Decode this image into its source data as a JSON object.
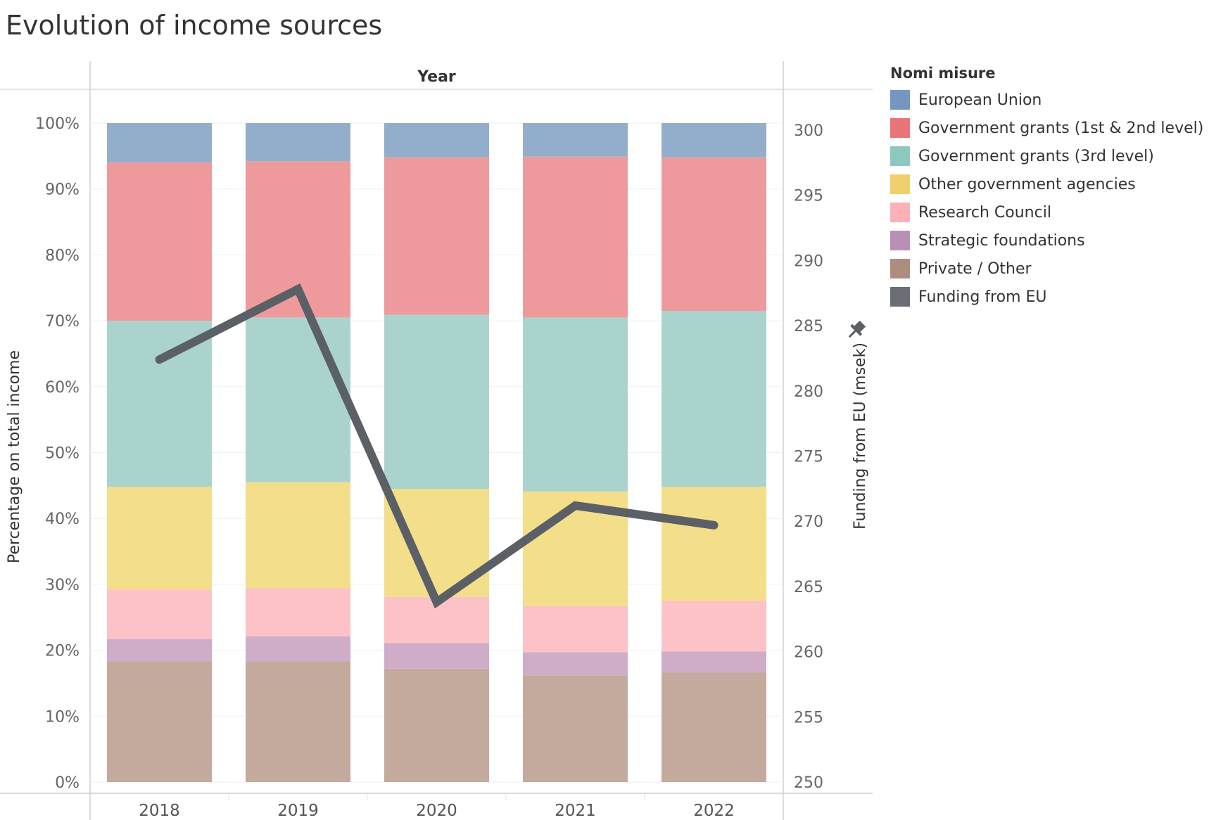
{
  "title": "Evolution of income sources",
  "legend": {
    "title": "Nomi misure",
    "items": [
      {
        "label": "European Union",
        "color": "#7597bd"
      },
      {
        "label": "Government grants (1st & 2nd level)",
        "color": "#e8757a"
      },
      {
        "label": "Government grants (3rd level)",
        "color": "#8ec6c0"
      },
      {
        "label": "Other government agencies",
        "color": "#f0d06c"
      },
      {
        "label": "Research Council",
        "color": "#fcb0b8"
      },
      {
        "label": "Strategic foundations",
        "color": "#b890b5"
      },
      {
        "label": "Private / Other",
        "color": "#ad8d7d"
      },
      {
        "label": "Funding from EU",
        "color": "#6b6f75"
      }
    ]
  },
  "chart_data": {
    "type": "bar",
    "stacked": true,
    "xlabel_top": "Year",
    "categories": [
      "2018",
      "2019",
      "2020",
      "2021",
      "2022"
    ],
    "ylabel": "Percentage on total income",
    "ylim": [
      0,
      100
    ],
    "yticks": [
      "0%",
      "10%",
      "20%",
      "30%",
      "40%",
      "50%",
      "60%",
      "70%",
      "80%",
      "90%",
      "100%"
    ],
    "series": [
      {
        "name": "Private / Other",
        "color": "#c4aa9d",
        "values": [
          18.3,
          18.3,
          17.2,
          16.2,
          16.6
        ]
      },
      {
        "name": "Strategic foundations",
        "color": "#cfadc9",
        "values": [
          3.4,
          3.8,
          3.9,
          3.5,
          3.2
        ]
      },
      {
        "name": "Research Council",
        "color": "#fdc2c8",
        "values": [
          7.5,
          7.3,
          7.0,
          7.0,
          7.7
        ]
      },
      {
        "name": "Other government agencies",
        "color": "#f3de8a",
        "values": [
          15.6,
          16.1,
          16.4,
          17.4,
          17.3
        ]
      },
      {
        "name": "Government grants (3rd level)",
        "color": "#abd3ce",
        "values": [
          25.2,
          25.0,
          26.4,
          26.4,
          26.7
        ]
      },
      {
        "name": "Government grants (1st & 2nd level)",
        "color": "#ee9a9c",
        "values": [
          24.0,
          23.7,
          23.9,
          24.4,
          23.3
        ]
      },
      {
        "name": "European Union",
        "color": "#93aecb",
        "values": [
          6.0,
          5.8,
          5.2,
          5.1,
          5.2
        ]
      }
    ],
    "line": {
      "name": "Funding from EU",
      "color": "#5b5f66",
      "axis_label": "Funding from EU (msek)",
      "ylim": [
        250,
        300
      ],
      "yticks": [
        "250",
        "255",
        "260",
        "265",
        "270",
        "275",
        "280",
        "285",
        "290",
        "295",
        "300"
      ],
      "values": [
        282.4,
        287.8,
        263.8,
        271.2,
        269.7
      ]
    }
  }
}
